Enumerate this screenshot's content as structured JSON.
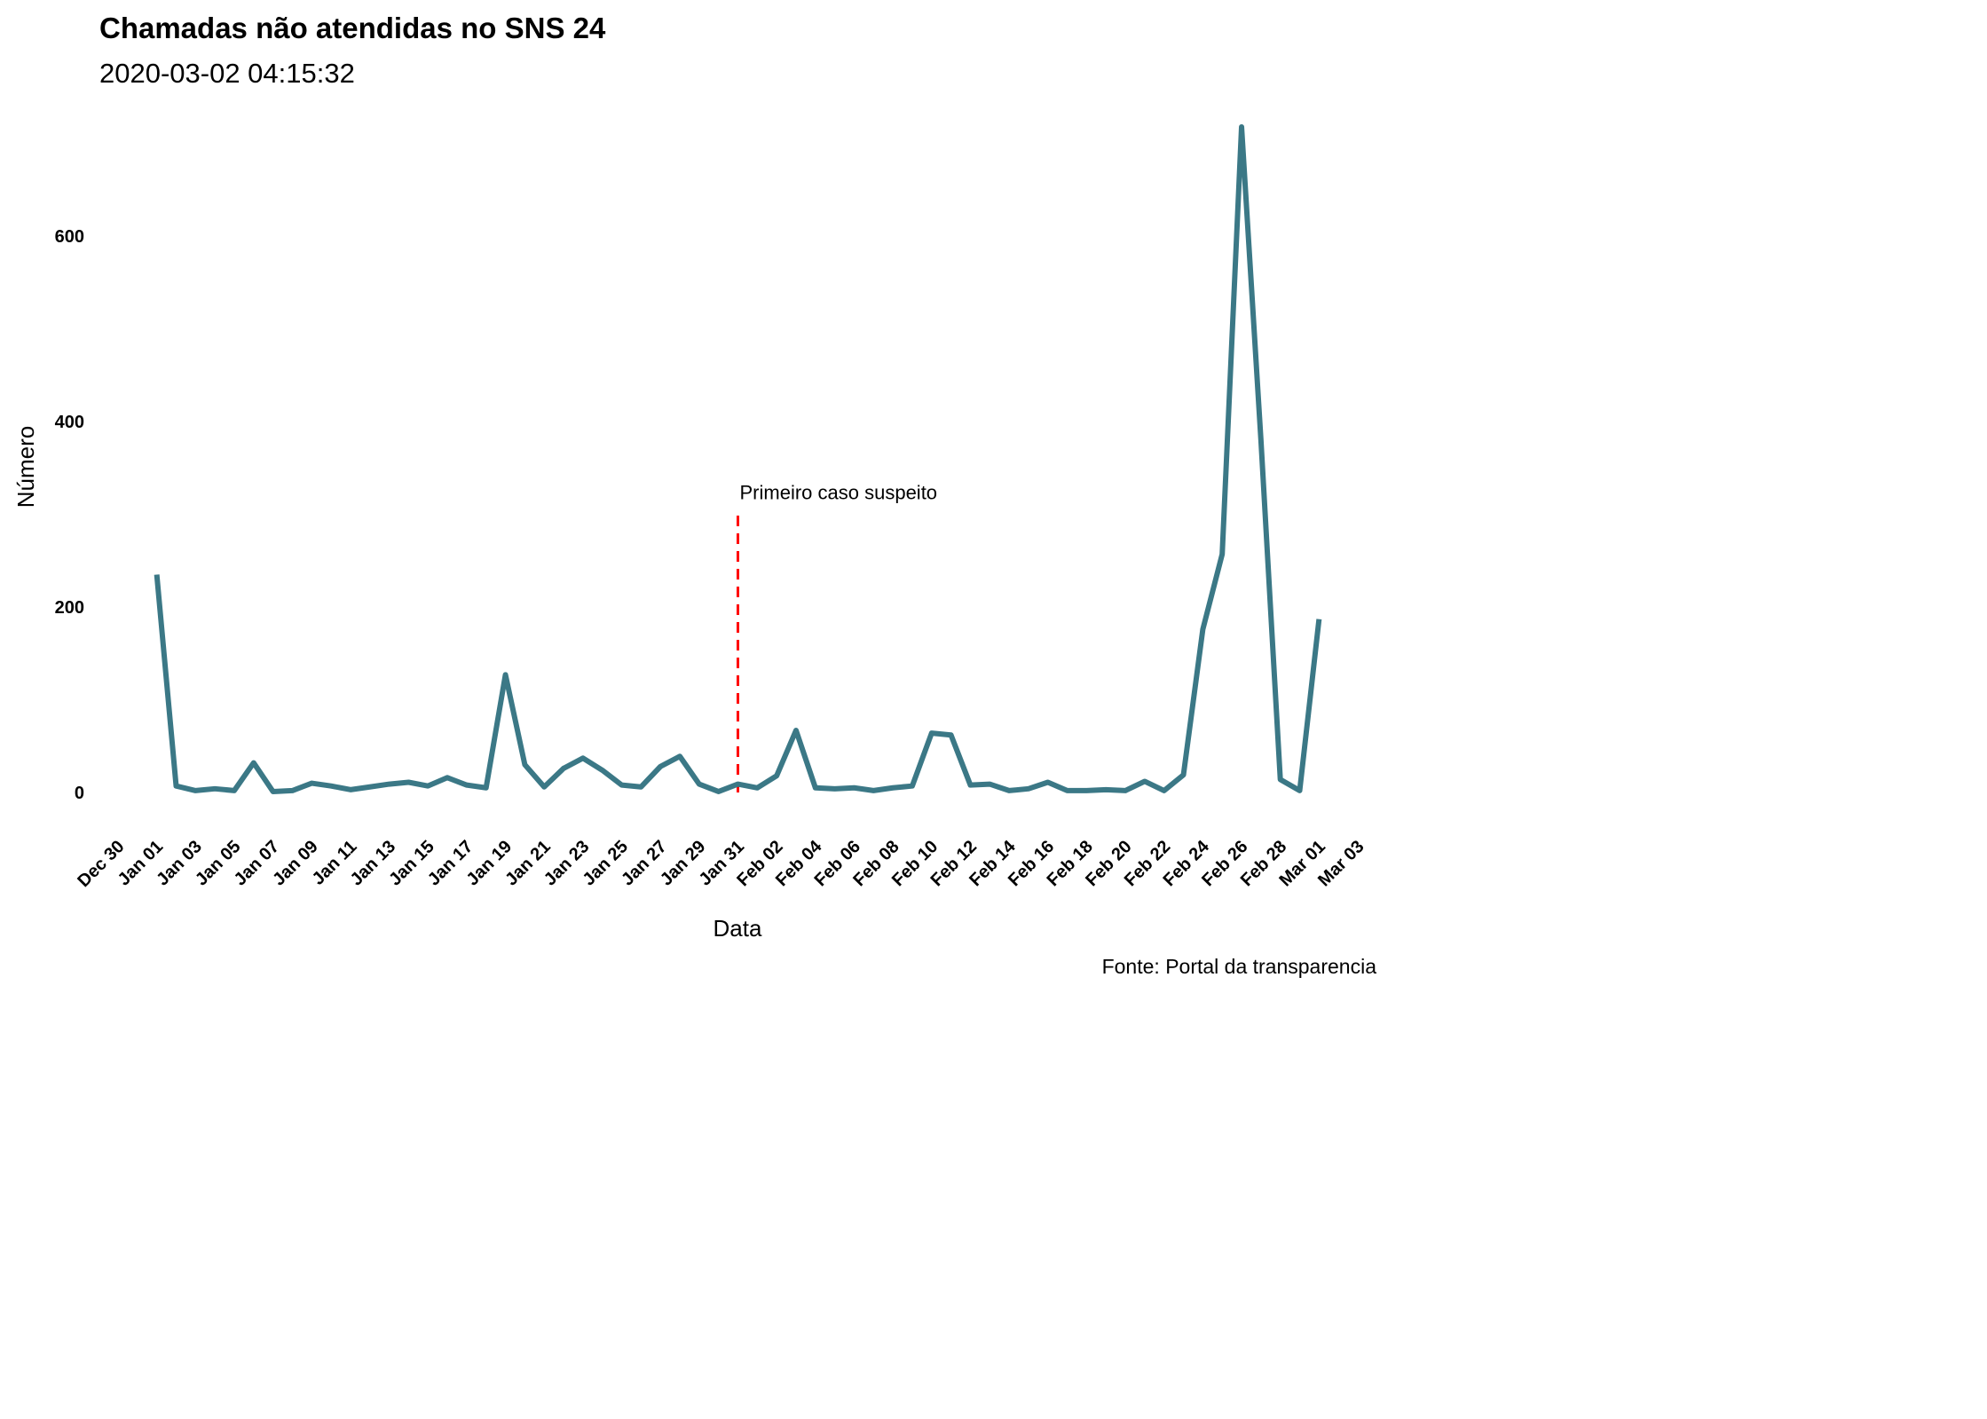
{
  "chart_data": {
    "type": "line",
    "title": "Chamadas não atendidas no SNS 24",
    "subtitle": "2020-03-02 04:15:32",
    "xlabel": "Data",
    "ylabel": "Número",
    "caption": "Fonte: Portal da transparencia",
    "x_range": [
      "2019-12-30",
      "2020-03-03"
    ],
    "ylim": [
      -45,
      740
    ],
    "grid": false,
    "x_ticks": [
      {
        "date": "2019-12-30",
        "label": "Dec 30"
      },
      {
        "date": "2020-01-01",
        "label": "Jan 01"
      },
      {
        "date": "2020-01-03",
        "label": "Jan 03"
      },
      {
        "date": "2020-01-05",
        "label": "Jan 05"
      },
      {
        "date": "2020-01-07",
        "label": "Jan 07"
      },
      {
        "date": "2020-01-09",
        "label": "Jan 09"
      },
      {
        "date": "2020-01-11",
        "label": "Jan 11"
      },
      {
        "date": "2020-01-13",
        "label": "Jan 13"
      },
      {
        "date": "2020-01-15",
        "label": "Jan 15"
      },
      {
        "date": "2020-01-17",
        "label": "Jan 17"
      },
      {
        "date": "2020-01-19",
        "label": "Jan 19"
      },
      {
        "date": "2020-01-21",
        "label": "Jan 21"
      },
      {
        "date": "2020-01-23",
        "label": "Jan 23"
      },
      {
        "date": "2020-01-25",
        "label": "Jan 25"
      },
      {
        "date": "2020-01-27",
        "label": "Jan 27"
      },
      {
        "date": "2020-01-29",
        "label": "Jan 29"
      },
      {
        "date": "2020-01-31",
        "label": "Jan 31"
      },
      {
        "date": "2020-02-02",
        "label": "Feb 02"
      },
      {
        "date": "2020-02-04",
        "label": "Feb 04"
      },
      {
        "date": "2020-02-06",
        "label": "Feb 06"
      },
      {
        "date": "2020-02-08",
        "label": "Feb 08"
      },
      {
        "date": "2020-02-10",
        "label": "Feb 10"
      },
      {
        "date": "2020-02-12",
        "label": "Feb 12"
      },
      {
        "date": "2020-02-14",
        "label": "Feb 14"
      },
      {
        "date": "2020-02-16",
        "label": "Feb 16"
      },
      {
        "date": "2020-02-18",
        "label": "Feb 18"
      },
      {
        "date": "2020-02-20",
        "label": "Feb 20"
      },
      {
        "date": "2020-02-22",
        "label": "Feb 22"
      },
      {
        "date": "2020-02-24",
        "label": "Feb 24"
      },
      {
        "date": "2020-02-26",
        "label": "Feb 26"
      },
      {
        "date": "2020-02-28",
        "label": "Feb 28"
      },
      {
        "date": "2020-03-01",
        "label": "Mar 01"
      },
      {
        "date": "2020-03-03",
        "label": "Mar 03"
      }
    ],
    "y_ticks": [
      {
        "value": 0,
        "label": "0"
      },
      {
        "value": 200,
        "label": "200"
      },
      {
        "value": 400,
        "label": "400"
      },
      {
        "value": 600,
        "label": "600"
      }
    ],
    "series": [
      {
        "color": "#3b7886",
        "points": [
          [
            "2020-01-01",
            235
          ],
          [
            "2020-01-02",
            7
          ],
          [
            "2020-01-03",
            2
          ],
          [
            "2020-01-04",
            4
          ],
          [
            "2020-01-05",
            2
          ],
          [
            "2020-01-06",
            32
          ],
          [
            "2020-01-07",
            1
          ],
          [
            "2020-01-08",
            2
          ],
          [
            "2020-01-09",
            10
          ],
          [
            "2020-01-10",
            7
          ],
          [
            "2020-01-11",
            3
          ],
          [
            "2020-01-12",
            6
          ],
          [
            "2020-01-13",
            9
          ],
          [
            "2020-01-14",
            11
          ],
          [
            "2020-01-15",
            7
          ],
          [
            "2020-01-16",
            16
          ],
          [
            "2020-01-17",
            8
          ],
          [
            "2020-01-18",
            5
          ],
          [
            "2020-01-19",
            127
          ],
          [
            "2020-01-20",
            30
          ],
          [
            "2020-01-21",
            6
          ],
          [
            "2020-01-22",
            26
          ],
          [
            "2020-01-23",
            37
          ],
          [
            "2020-01-24",
            24
          ],
          [
            "2020-01-25",
            8
          ],
          [
            "2020-01-26",
            6
          ],
          [
            "2020-01-27",
            28
          ],
          [
            "2020-01-28",
            39
          ],
          [
            "2020-01-29",
            9
          ],
          [
            "2020-01-30",
            1
          ],
          [
            "2020-01-31",
            9
          ],
          [
            "2020-02-01",
            5
          ],
          [
            "2020-02-02",
            18
          ],
          [
            "2020-02-03",
            67
          ],
          [
            "2020-02-04",
            5
          ],
          [
            "2020-02-05",
            4
          ],
          [
            "2020-02-06",
            5
          ],
          [
            "2020-02-07",
            2
          ],
          [
            "2020-02-08",
            5
          ],
          [
            "2020-02-09",
            7
          ],
          [
            "2020-02-10",
            64
          ],
          [
            "2020-02-11",
            62
          ],
          [
            "2020-02-12",
            8
          ],
          [
            "2020-02-13",
            9
          ],
          [
            "2020-02-14",
            2
          ],
          [
            "2020-02-15",
            4
          ],
          [
            "2020-02-16",
            11
          ],
          [
            "2020-02-17",
            2
          ],
          [
            "2020-02-18",
            2
          ],
          [
            "2020-02-19",
            3
          ],
          [
            "2020-02-20",
            2
          ],
          [
            "2020-02-21",
            12
          ],
          [
            "2020-02-22",
            2
          ],
          [
            "2020-02-23",
            19
          ],
          [
            "2020-02-24",
            176
          ],
          [
            "2020-02-25",
            257
          ],
          [
            "2020-02-26",
            718
          ],
          [
            "2020-02-27",
            380
          ],
          [
            "2020-02-28",
            14
          ],
          [
            "2020-02-29",
            2
          ],
          [
            "2020-03-01",
            187
          ]
        ]
      }
    ],
    "annotation": {
      "text": "Primeiro caso suspeito",
      "date": "2020-01-31",
      "line_color": "#ff0000",
      "line_style": "dashed",
      "line_y": [
        0,
        300
      ]
    }
  }
}
